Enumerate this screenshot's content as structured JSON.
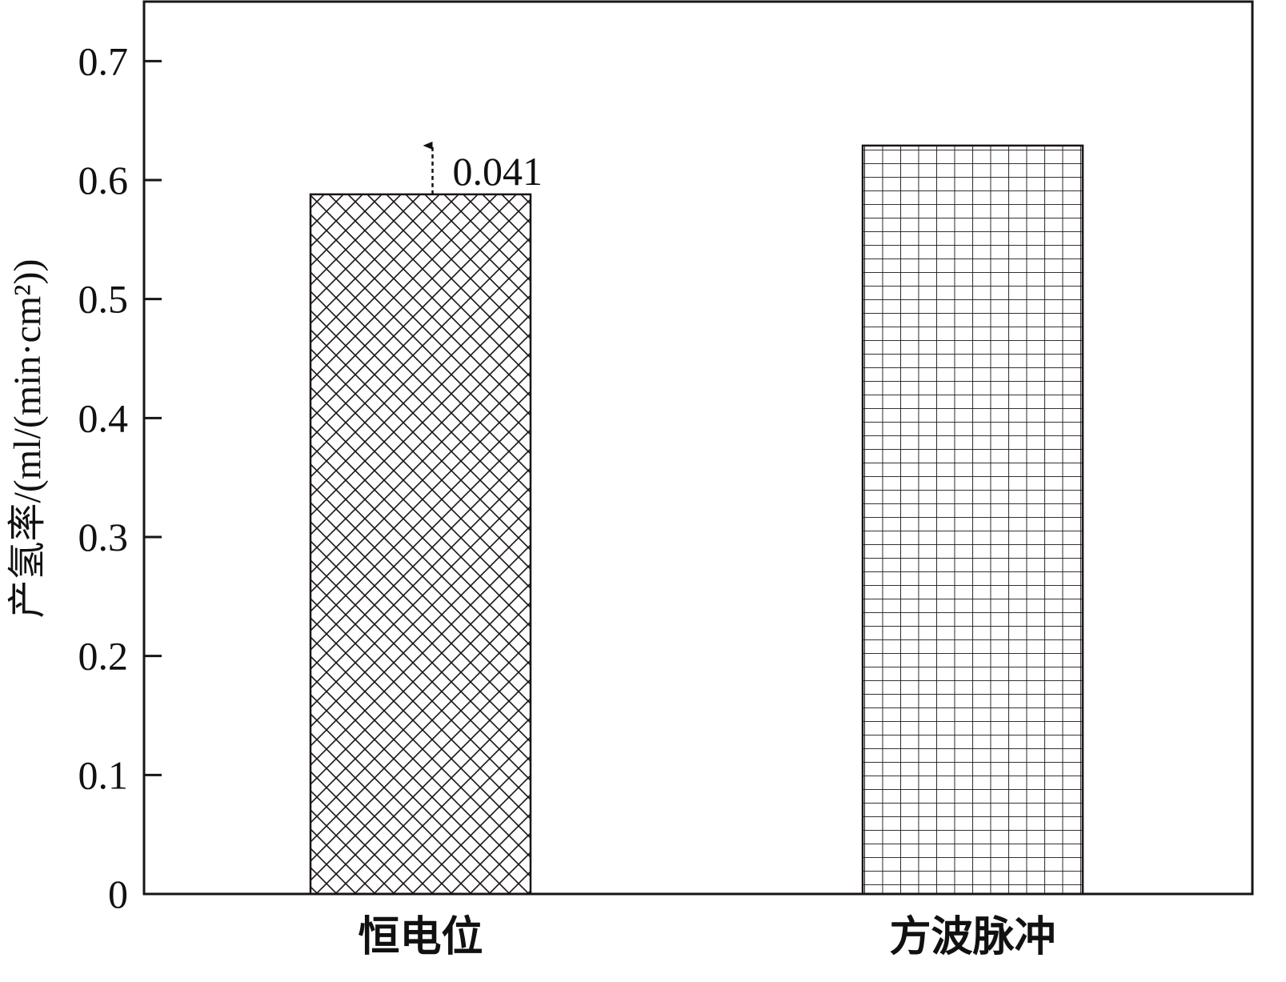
{
  "chart_data": {
    "type": "bar",
    "categories": [
      "恒电位",
      "方波脉冲"
    ],
    "values": [
      0.588,
      0.629
    ],
    "patterns": [
      "diagonal-crosshatch",
      "square-grid"
    ],
    "xlabel": "",
    "ylabel": "产氢率/(ml/(min·cm²))",
    "ylim": [
      0,
      0.75
    ],
    "yticks": [
      0,
      0.1,
      0.2,
      0.3,
      0.4,
      0.5,
      0.6,
      0.7
    ],
    "ytick_labels": [
      "0",
      "0.1",
      "0.2",
      "0.3",
      "0.4",
      "0.5",
      "0.6",
      "0.7"
    ],
    "grid": false,
    "annotation": {
      "label": "0.041",
      "from": 0.588,
      "to": 0.629,
      "category": "恒电位",
      "style": "dashed-arrow"
    },
    "colors": {
      "bar_fill": "#ffffff",
      "hatch": "#1a1414",
      "axis": "#1a1414"
    }
  }
}
